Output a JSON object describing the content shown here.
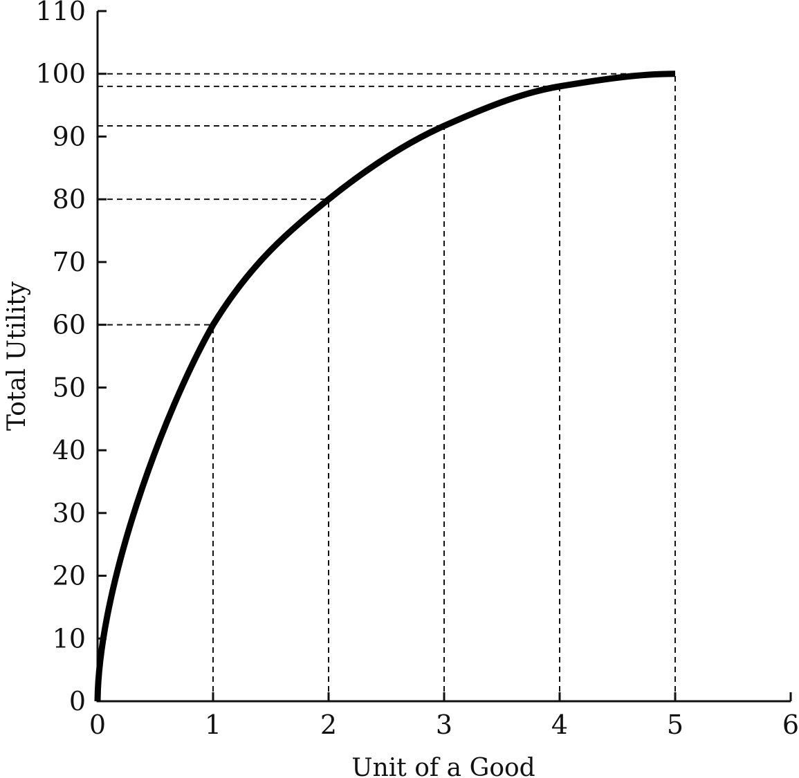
{
  "chart_data": {
    "type": "line",
    "title": "",
    "xlabel": "Unit of a Good",
    "ylabel": "Total Utility",
    "xlim": [
      0,
      6
    ],
    "ylim": [
      0,
      110
    ],
    "x_ticks": [
      "0",
      "1",
      "2",
      "3",
      "4",
      "5",
      "6"
    ],
    "y_ticks": [
      "0",
      "10",
      "20",
      "30",
      "40",
      "50",
      "60",
      "70",
      "80",
      "90",
      "100",
      "110"
    ],
    "grid": false,
    "legend": "none",
    "series": [
      {
        "x": [
          0,
          1,
          2,
          3,
          4,
          5
        ],
        "values": [
          0,
          60,
          80,
          91.7,
          98,
          100
        ]
      }
    ],
    "reference_lines": [
      {
        "x": 1,
        "y": 60
      },
      {
        "x": 2,
        "y": 80
      },
      {
        "x": 3,
        "y": 91.7
      },
      {
        "x": 4,
        "y": 98
      },
      {
        "x": 5,
        "y": 100
      }
    ],
    "colors": {
      "curve": "#000000",
      "axis": "#111111",
      "guide": "#111111"
    }
  }
}
